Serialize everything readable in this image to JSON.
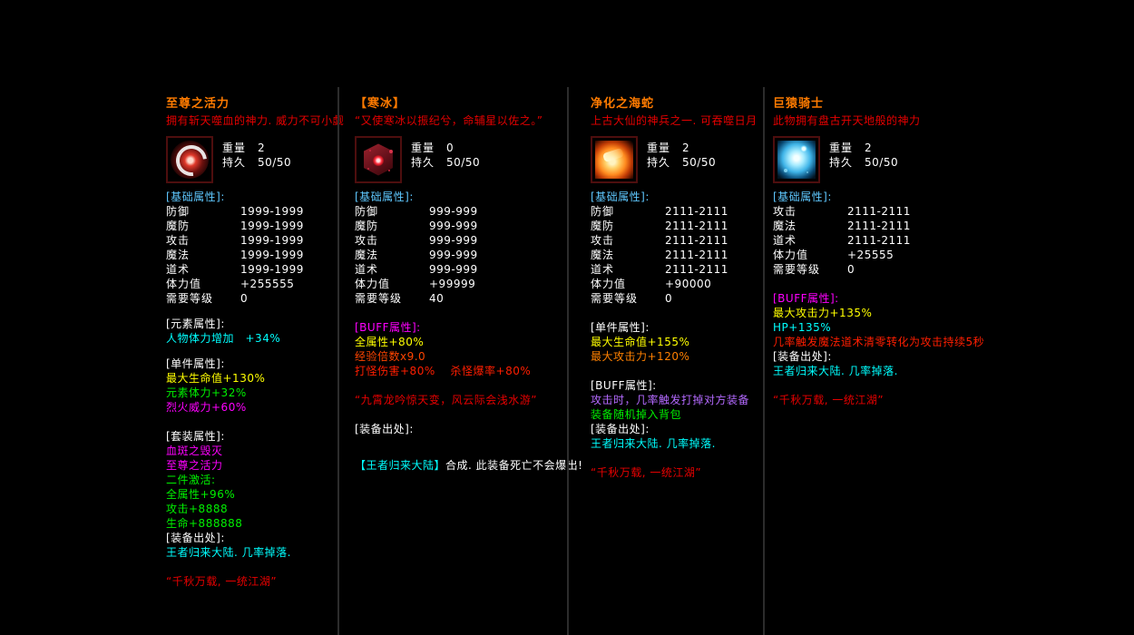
{
  "colors": {
    "title": "#ff7b00",
    "desc_red": "#e60000",
    "red": "#ff1e00",
    "white": "#ffffff",
    "blue": "#5fc8ff",
    "cyan": "#00ffff",
    "yellow": "#ffff00",
    "green": "#00f000",
    "magenta": "#ff00ff",
    "orange": "#ff8000",
    "orangered": "#ff4500",
    "violet": "#b46aff",
    "divider": "#2c2c2c",
    "icon_border": "#4e0e0e"
  },
  "panels": [
    {
      "title": "至尊之活力",
      "desc": "拥有斩天噬血的神力. 威力不可小觑",
      "icon": "dark-orb-icon",
      "weight_label": "重量",
      "weight_value": "2",
      "dura_label": "持久",
      "dura_value": "50/50",
      "lines": [
        {
          "h": "[基础属性]:",
          "c": "blue"
        },
        {
          "label": "防御",
          "value": "1999-1999"
        },
        {
          "label": "魔防",
          "value": "1999-1999"
        },
        {
          "label": "攻击",
          "value": "1999-1999"
        },
        {
          "label": "魔法",
          "value": "1999-1999"
        },
        {
          "label": "道术",
          "value": "1999-1999"
        },
        {
          "label": "体力值",
          "value": "+255555"
        },
        {
          "label": "需要等级",
          "value": "0"
        },
        {
          "gap": 12
        },
        {
          "h": "[元素属性]:",
          "c": "white"
        },
        {
          "t": "人物体力增加　+34%",
          "c": "cyan"
        },
        {
          "gap": 12
        },
        {
          "h": "[单件属性]:",
          "c": "white"
        },
        {
          "t": "最大生命值+130%",
          "c": "yellow"
        },
        {
          "t": "元素体力+32%",
          "c": "green"
        },
        {
          "t": "烈火威力+60%",
          "c": "magenta"
        },
        {
          "gap": 16
        },
        {
          "h": "[套装属性]:",
          "c": "white"
        },
        {
          "t": "血斑之毁灭",
          "c": "magenta"
        },
        {
          "t": "至尊之活力",
          "c": "magenta"
        },
        {
          "t": "二件激活:",
          "c": "green"
        },
        {
          "t": "全属性+96%",
          "c": "green"
        },
        {
          "t": "攻击+8888",
          "c": "green"
        },
        {
          "t": "生命+888888",
          "c": "green"
        },
        {
          "h": "[装备出处]:",
          "c": "white"
        },
        {
          "t": "王者归来大陆. 几率掉落.",
          "c": "cyan"
        },
        {
          "gap": 16
        },
        {
          "t": "“千秋万载, 一统江湖”",
          "c": "desc_red"
        }
      ]
    },
    {
      "title": "【寒冰】",
      "desc": "“又使寒冰以振纪兮，命辅星以佐之。”",
      "icon": "red-dice-icon",
      "weight_label": "重量",
      "weight_value": "0",
      "dura_label": "持久",
      "dura_value": "50/50",
      "lines": [
        {
          "h": "[基础属性]:",
          "c": "blue"
        },
        {
          "label": "防御",
          "value": "999-999"
        },
        {
          "label": "魔防",
          "value": "999-999"
        },
        {
          "label": "攻击",
          "value": "999-999"
        },
        {
          "label": "魔法",
          "value": "999-999"
        },
        {
          "label": "道术",
          "value": "999-999"
        },
        {
          "label": "体力值",
          "value": "+99999"
        },
        {
          "label": "需要等级",
          "value": "40"
        },
        {
          "gap": 16
        },
        {
          "h": "[BUFF属性]:",
          "c": "magenta"
        },
        {
          "t": "全属性+80%",
          "c": "yellow"
        },
        {
          "t": "经验倍数x9.0",
          "c": "orangered"
        },
        {
          "t": "打怪伤害+80%　 杀怪爆率+80%",
          "c": "red"
        },
        {
          "gap": 16
        },
        {
          "t": "“九霄龙吟惊天变，风云际会浅水游”",
          "c": "desc_red"
        },
        {
          "gap": 16
        },
        {
          "h": "[装备出处]:",
          "c": "white"
        },
        {
          "gap": 24
        },
        {
          "parts": [
            {
              "t": "【王者归来大陆】",
              "c": "cyan"
            },
            {
              "t": "合成. 此装备死亡不会爆出!",
              "c": "white"
            }
          ]
        }
      ]
    },
    {
      "title": "净化之海蛇",
      "desc": "上古大仙的神兵之一. 可吞噬日月",
      "icon": "flame-relic-icon",
      "weight_label": "重量",
      "weight_value": "2",
      "dura_label": "持久",
      "dura_value": "50/50",
      "lines": [
        {
          "h": "[基础属性]:",
          "c": "blue"
        },
        {
          "label": "防御",
          "value": "2111-2111"
        },
        {
          "label": "魔防",
          "value": "2111-2111"
        },
        {
          "label": "攻击",
          "value": "2111-2111"
        },
        {
          "label": "魔法",
          "value": "2111-2111"
        },
        {
          "label": "道术",
          "value": "2111-2111"
        },
        {
          "label": "体力值",
          "value": "+90000"
        },
        {
          "label": "需要等级",
          "value": "0"
        },
        {
          "gap": 16
        },
        {
          "h": "[单件属性]:",
          "c": "white"
        },
        {
          "t": "最大生命值+155%",
          "c": "yellow"
        },
        {
          "t": "最大攻击力+120%",
          "c": "orange"
        },
        {
          "gap": 16
        },
        {
          "h": "[BUFF属性]:",
          "c": "white"
        },
        {
          "t": "攻击时，几率触发打掉对方装备",
          "c": "violet"
        },
        {
          "t": "装备随机掉入背包",
          "c": "green"
        },
        {
          "h": "[装备出处]:",
          "c": "white"
        },
        {
          "t": "王者归来大陆. 几率掉落.",
          "c": "cyan"
        },
        {
          "gap": 16
        },
        {
          "t": "“千秋万载, 一统江湖”",
          "c": "desc_red"
        }
      ]
    },
    {
      "title": "巨猿骑士",
      "desc": "此物拥有盘古开天地般的神力",
      "icon": "ice-beast-icon",
      "weight_label": "重量",
      "weight_value": "2",
      "dura_label": "持久",
      "dura_value": "50/50",
      "lines": [
        {
          "h": "[基础属性]:",
          "c": "blue"
        },
        {
          "label": "攻击",
          "value": "2111-2111"
        },
        {
          "label": "魔法",
          "value": "2111-2111"
        },
        {
          "label": "道术",
          "value": "2111-2111"
        },
        {
          "label": "体力值",
          "value": "+25555"
        },
        {
          "label": "需要等级",
          "value": "0"
        },
        {
          "gap": 16
        },
        {
          "h": "[BUFF属性]:",
          "c": "magenta"
        },
        {
          "t": "最大攻击力+135%",
          "c": "yellow"
        },
        {
          "t": "HP+135%",
          "c": "cyan"
        },
        {
          "t": "几率触发魔法道术清零转化为攻击持续5秒",
          "c": "red"
        },
        {
          "h": "[装备出处]:",
          "c": "white"
        },
        {
          "t": "王者归来大陆. 几率掉落.",
          "c": "cyan"
        },
        {
          "gap": 16
        },
        {
          "t": "“千秋万载, 一统江湖”",
          "c": "desc_red"
        }
      ]
    }
  ]
}
